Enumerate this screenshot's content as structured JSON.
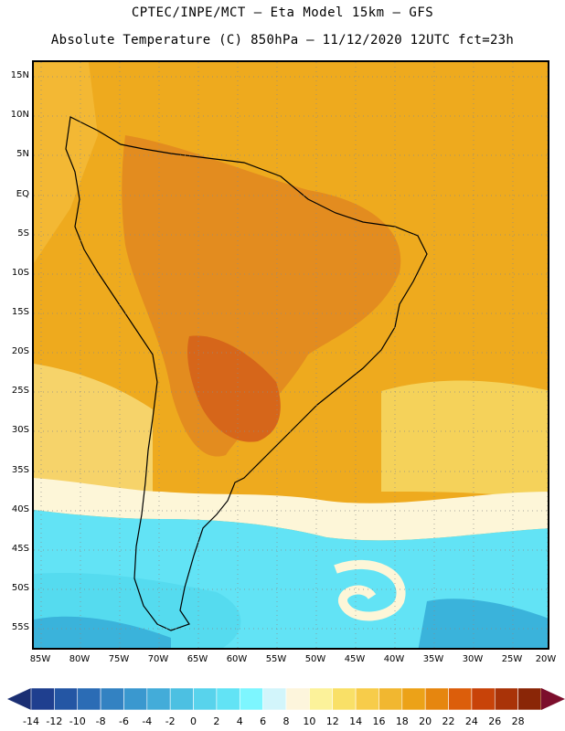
{
  "header": {
    "line1": "CPTEC/INPE/MCT –  Eta Model 15km – GFS",
    "line2": "Absolute Temperature (C) 850hPa – 11/12/2020 12UTC fct=23h"
  },
  "map": {
    "lat_labels": [
      "15N",
      "10N",
      "5N",
      "EQ",
      "5S",
      "10S",
      "15S",
      "20S",
      "25S",
      "30S",
      "35S",
      "40S",
      "45S",
      "50S",
      "55S"
    ],
    "lon_labels": [
      "85W",
      "80W",
      "75W",
      "70W",
      "65W",
      "60W",
      "55W",
      "50W",
      "45W",
      "40W",
      "35W",
      "30W",
      "25W",
      "20W"
    ],
    "grid": "dotted",
    "colors": {
      "hot_dark": "#d6661a",
      "hot": "#e38c1f",
      "warm": "#eeaa1e",
      "mild": "#f3c43a",
      "pale": "#f9e27a",
      "cream": "#fdf6d8",
      "cyan_light": "#7df1ff",
      "cyan": "#55dbef",
      "blue_mid": "#3ab3db",
      "blue": "#3a8ec8"
    }
  },
  "colorbar": {
    "labels": [
      "-14",
      "-12",
      "-10",
      "-8",
      "-6",
      "-4",
      "-2",
      "0",
      "2",
      "4",
      "6",
      "8",
      "10",
      "12",
      "14",
      "16",
      "18",
      "20",
      "22",
      "24",
      "26",
      "28"
    ],
    "colors": [
      "#1f3f8f",
      "#2456a4",
      "#2b6cb5",
      "#3382c2",
      "#3a98cf",
      "#43acd9",
      "#4cc0e2",
      "#58d3ec",
      "#62e3f5",
      "#7df6ff",
      "#d2f5fb",
      "#fdf5dc",
      "#fcf29a",
      "#f9e067",
      "#f7cc4a",
      "#f1b730",
      "#eca218",
      "#e6860f",
      "#dc5e0b",
      "#c84309",
      "#a93308",
      "#8a2607"
    ],
    "under_color": "#1b2f73",
    "over_color": "#7c0e2c"
  }
}
